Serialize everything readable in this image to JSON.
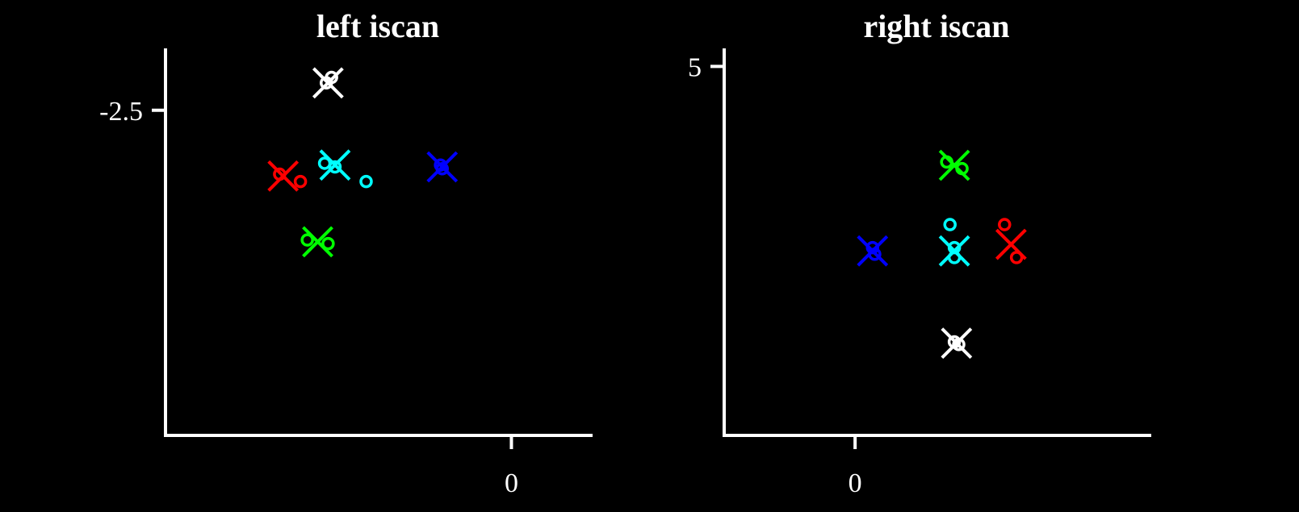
{
  "chart_data": [
    {
      "type": "scatter",
      "title": "left iscan",
      "xlabel": "",
      "ylabel": "",
      "x_ticks": [
        0
      ],
      "y_ticks": [
        -2.5
      ],
      "xlim": [
        -10,
        2.3
      ],
      "ylim": [
        -11.4,
        -0.85
      ],
      "grid": false,
      "series": [
        {
          "color": "#ff0000",
          "cross": [
            -6.6,
            -4.3
          ],
          "circles": [
            [
              -6.7,
              -4.25
            ],
            [
              -6.1,
              -4.45
            ]
          ]
        },
        {
          "color": "#00ff00",
          "cross": [
            -5.6,
            -6.1
          ],
          "circles": [
            [
              -5.9,
              -6.05
            ],
            [
              -5.3,
              -6.15
            ]
          ]
        },
        {
          "color": "#ffffff",
          "cross": [
            -5.3,
            -1.75
          ],
          "circles": [
            [
              -5.35,
              -1.75
            ],
            [
              -5.2,
              -1.6
            ]
          ]
        },
        {
          "color": "#00ffff",
          "cross": [
            -5.1,
            -4.0
          ],
          "circles": [
            [
              -5.4,
              -3.95
            ],
            [
              -5.1,
              -4.05
            ],
            [
              -4.2,
              -4.45
            ]
          ]
        },
        {
          "color": "#0000ff",
          "cross": [
            -2.0,
            -4.05
          ],
          "circles": [
            [
              -2.05,
              -4.0
            ],
            [
              -2.0,
              -4.1
            ]
          ]
        }
      ]
    },
    {
      "type": "scatter",
      "title": "right iscan",
      "xlabel": "",
      "ylabel": "",
      "x_ticks": [
        0
      ],
      "y_ticks": [
        5
      ],
      "xlim": [
        -0.6,
        1.35
      ],
      "ylim": [
        -0.6,
        5.25
      ],
      "grid": false,
      "series": [
        {
          "color": "#00ff00",
          "cross": [
            0.455,
            3.5
          ],
          "circles": [
            [
              0.42,
              3.55
            ],
            [
              0.49,
              3.45
            ]
          ]
        },
        {
          "color": "#0000ff",
          "cross": [
            0.08,
            2.2
          ],
          "circles": [
            [
              0.08,
              2.25
            ],
            [
              0.09,
              2.15
            ]
          ]
        },
        {
          "color": "#00ffff",
          "cross": [
            0.455,
            2.2
          ],
          "circles": [
            [
              0.435,
              2.6
            ],
            [
              0.455,
              2.25
            ],
            [
              0.455,
              2.1
            ]
          ]
        },
        {
          "color": "#ff0000",
          "cross": [
            0.715,
            2.3
          ],
          "circles": [
            [
              0.685,
              2.6
            ],
            [
              0.74,
              2.1
            ]
          ]
        },
        {
          "color": "#ffffff",
          "cross": [
            0.465,
            0.8
          ],
          "circles": [
            [
              0.455,
              0.82
            ],
            [
              0.475,
              0.78
            ]
          ]
        }
      ]
    }
  ]
}
